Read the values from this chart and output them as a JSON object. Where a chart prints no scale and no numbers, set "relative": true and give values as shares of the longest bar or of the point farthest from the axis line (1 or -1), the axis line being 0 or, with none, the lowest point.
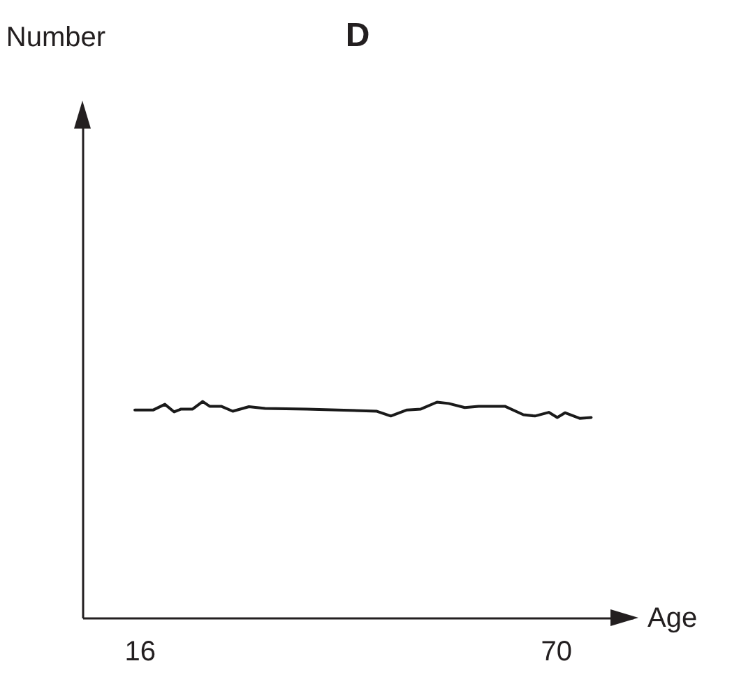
{
  "chart_data": {
    "type": "line",
    "title": "D",
    "xlabel": "Age",
    "annotations": [
      "Number"
    ],
    "relative": true,
    "xlim": [
      8.6,
      80
    ],
    "xticks": [
      16,
      70
    ],
    "x": [
      15.4,
      17.8,
      19.3,
      20.5,
      21.4,
      22.9,
      24.2,
      25.1,
      26.6,
      28.1,
      30.2,
      32.3,
      37.7,
      46.8,
      48.6,
      50.7,
      52.5,
      54.6,
      56.1,
      58.2,
      60.0,
      63.4,
      65.8,
      67.3,
      69.1,
      70.2,
      71.2,
      73.1,
      74.6
    ],
    "series": [
      {
        "color": "#1a1a1a",
        "values": [
          0.961,
          0.961,
          0.987,
          0.952,
          0.965,
          0.965,
          1.0,
          0.978,
          0.978,
          0.955,
          0.976,
          0.968,
          0.965,
          0.955,
          0.933,
          0.961,
          0.965,
          0.997,
          0.991,
          0.972,
          0.978,
          0.978,
          0.939,
          0.933,
          0.95,
          0.926,
          0.948,
          0.922,
          0.926
        ]
      }
    ]
  }
}
